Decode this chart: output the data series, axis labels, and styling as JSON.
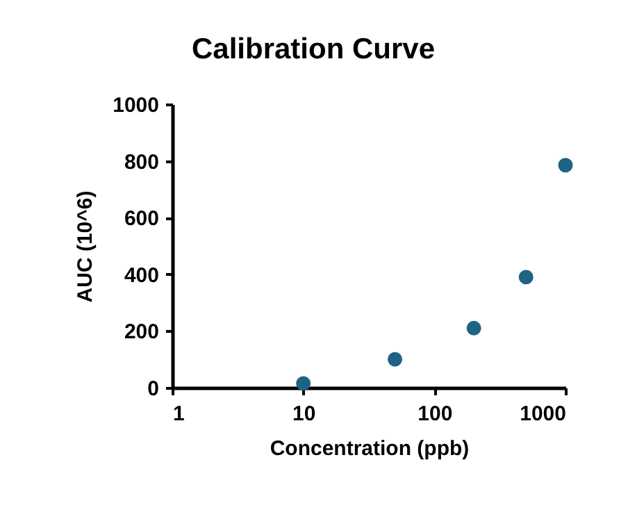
{
  "chart_data": {
    "type": "scatter",
    "title": "Calibration Curve",
    "xlabel": "Concentration (ppb)",
    "ylabel": "AUC (10^6)",
    "x": [
      10,
      50,
      200,
      500,
      1000
    ],
    "series": [
      {
        "color": "#1f6384",
        "values": [
          15,
          100,
          210,
          390,
          785
        ]
      }
    ],
    "log": "x",
    "xlim": [
      1,
      1000
    ],
    "xticks": [
      1,
      10,
      100,
      1000
    ],
    "ylim": [
      0,
      1000
    ],
    "yticks": [
      0,
      200,
      400,
      600,
      800,
      1000
    ],
    "grid": false,
    "marker": "circle"
  }
}
